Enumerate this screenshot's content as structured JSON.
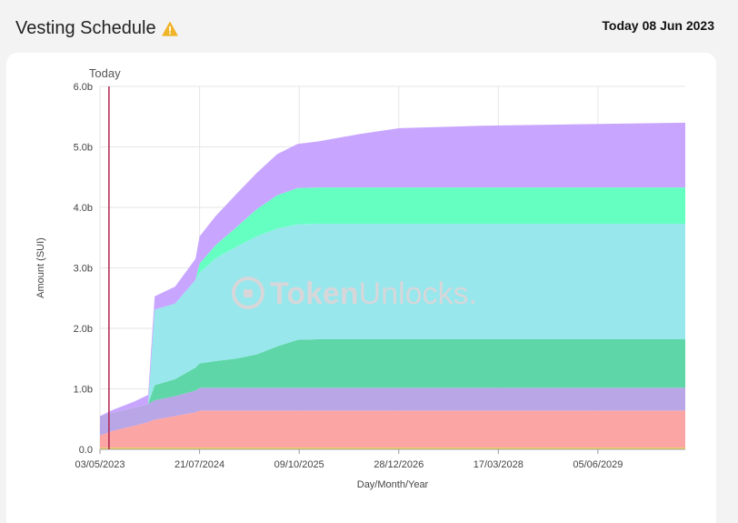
{
  "header": {
    "title": "Vesting Schedule",
    "today_prefix": "Today",
    "today_date": "08 Jun 2023"
  },
  "watermark": {
    "text_a": "Token",
    "text_b": "Unlocks."
  },
  "colors": {
    "background": "#f3f3f4",
    "card": "#ffffff",
    "today_line": "#b0244d",
    "warning": "#f0b429"
  },
  "chart_data": {
    "type": "area",
    "stacked": true,
    "xlabel": "Day/Month/Year",
    "ylabel": "Amount (SUI)",
    "ylim": [
      0,
      6.0
    ],
    "yticks": [
      "0.0",
      "1.0b",
      "2.0b",
      "3.0b",
      "4.0b",
      "5.0b",
      "6.0b"
    ],
    "xticks": [
      "03/05/2023",
      "21/07/2024",
      "09/10/2025",
      "28/12/2026",
      "17/03/2028",
      "05/06/2029"
    ],
    "today_marker": {
      "label": "Today",
      "date": "2023-06-08"
    },
    "grid": true,
    "x": [
      2023.33,
      2023.5,
      2023.75,
      2023.92,
      2024.0,
      2024.25,
      2024.5,
      2024.55,
      2024.75,
      2025.0,
      2025.25,
      2025.5,
      2025.75,
      2026.0,
      2026.25,
      2026.5,
      2027.0,
      2028.0,
      2029.0,
      2030.5
    ],
    "series": [
      {
        "color": "#f0d36a",
        "values": [
          0.03,
          0.03,
          0.03,
          0.03,
          0.03,
          0.03,
          0.03,
          0.03,
          0.03,
          0.03,
          0.03,
          0.03,
          0.03,
          0.03,
          0.03,
          0.03,
          0.03,
          0.03,
          0.03,
          0.03
        ]
      },
      {
        "color": "#fca5a5",
        "values": [
          0.2,
          0.28,
          0.36,
          0.42,
          0.46,
          0.52,
          0.58,
          0.61,
          0.61,
          0.61,
          0.61,
          0.61,
          0.61,
          0.61,
          0.61,
          0.61,
          0.61,
          0.61,
          0.61,
          0.61
        ]
      },
      {
        "color": "#b9a6e6",
        "values": [
          0.32,
          0.3,
          0.3,
          0.3,
          0.32,
          0.33,
          0.36,
          0.38,
          0.38,
          0.38,
          0.38,
          0.38,
          0.38,
          0.38,
          0.38,
          0.38,
          0.38,
          0.38,
          0.38,
          0.38
        ]
      },
      {
        "color": "#5ed6a7",
        "values": [
          0.0,
          0.0,
          0.0,
          0.0,
          0.25,
          0.28,
          0.38,
          0.4,
          0.44,
          0.48,
          0.55,
          0.68,
          0.79,
          0.8,
          0.8,
          0.8,
          0.8,
          0.8,
          0.8,
          0.8
        ]
      },
      {
        "color": "#97e7ec",
        "values": [
          0.0,
          0.0,
          0.0,
          0.0,
          1.25,
          1.25,
          1.45,
          1.5,
          1.7,
          1.85,
          1.95,
          1.95,
          1.91,
          1.91,
          1.91,
          1.91,
          1.91,
          1.91,
          1.91,
          1.91
        ]
      },
      {
        "color": "#66ffc2",
        "values": [
          0.0,
          0.0,
          0.0,
          0.0,
          0.0,
          0.0,
          0.0,
          0.15,
          0.22,
          0.32,
          0.45,
          0.55,
          0.6,
          0.6,
          0.6,
          0.6,
          0.6,
          0.6,
          0.6,
          0.6
        ]
      },
      {
        "color": "#c8a6ff",
        "values": [
          0.0,
          0.05,
          0.1,
          0.15,
          0.22,
          0.28,
          0.35,
          0.45,
          0.48,
          0.55,
          0.6,
          0.68,
          0.73,
          0.76,
          0.82,
          0.88,
          0.98,
          1.02,
          1.04,
          1.07
        ]
      }
    ]
  }
}
